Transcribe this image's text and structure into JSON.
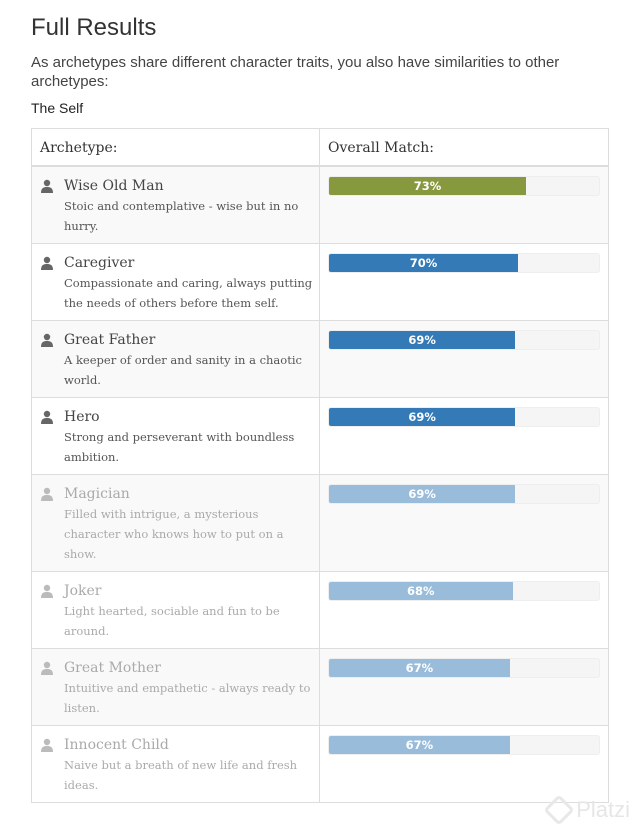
{
  "page": {
    "title": "Full Results",
    "intro": "As archetypes share different character traits, you also have similarities to other archetypes:",
    "subhead": "The Self"
  },
  "table": {
    "col_archetype": "Archetype:",
    "col_match": "Overall Match:",
    "rows": [
      {
        "name": "Wise Old Man",
        "desc": "Stoic and contemplative - wise but in no hurry.",
        "match_label": "73%",
        "match": 73,
        "color": "#86993f",
        "faded": false,
        "shaded": true,
        "icon": "person-icon"
      },
      {
        "name": "Caregiver",
        "desc": "Compassionate and caring, always putting the needs of others before them self.",
        "match_label": "70%",
        "match": 70,
        "color": "#337ab7",
        "faded": false,
        "shaded": false,
        "icon": "person-icon"
      },
      {
        "name": "Great Father",
        "desc": "A keeper of order and sanity in a chaotic world.",
        "match_label": "69%",
        "match": 69,
        "color": "#337ab7",
        "faded": false,
        "shaded": true,
        "icon": "person-icon"
      },
      {
        "name": "Hero",
        "desc": "Strong and perseverant with boundless ambition.",
        "match_label": "69%",
        "match": 69,
        "color": "#337ab7",
        "faded": false,
        "shaded": false,
        "icon": "person-icon"
      },
      {
        "name": "Magician",
        "desc": "Filled with intrigue, a mysterious character who knows how to put on a show.",
        "match_label": "69%",
        "match": 69,
        "color": "#99bcdb",
        "faded": true,
        "shaded": true,
        "icon": "person-icon"
      },
      {
        "name": "Joker",
        "desc": "Light hearted, sociable and fun to be around.",
        "match_label": "68%",
        "match": 68,
        "color": "#99bcdb",
        "faded": true,
        "shaded": false,
        "icon": "person-icon"
      },
      {
        "name": "Great Mother",
        "desc": "Intuitive and empathetic - always ready to listen.",
        "match_label": "67%",
        "match": 67,
        "color": "#99bcdb",
        "faded": true,
        "shaded": true,
        "icon": "person-icon"
      },
      {
        "name": "Innocent Child",
        "desc": "Naive but a breath of new life and fresh ideas.",
        "match_label": "67%",
        "match": 67,
        "color": "#99bcdb",
        "faded": true,
        "shaded": false,
        "icon": "person-icon"
      }
    ]
  },
  "watermark": {
    "text": "Platzi"
  }
}
